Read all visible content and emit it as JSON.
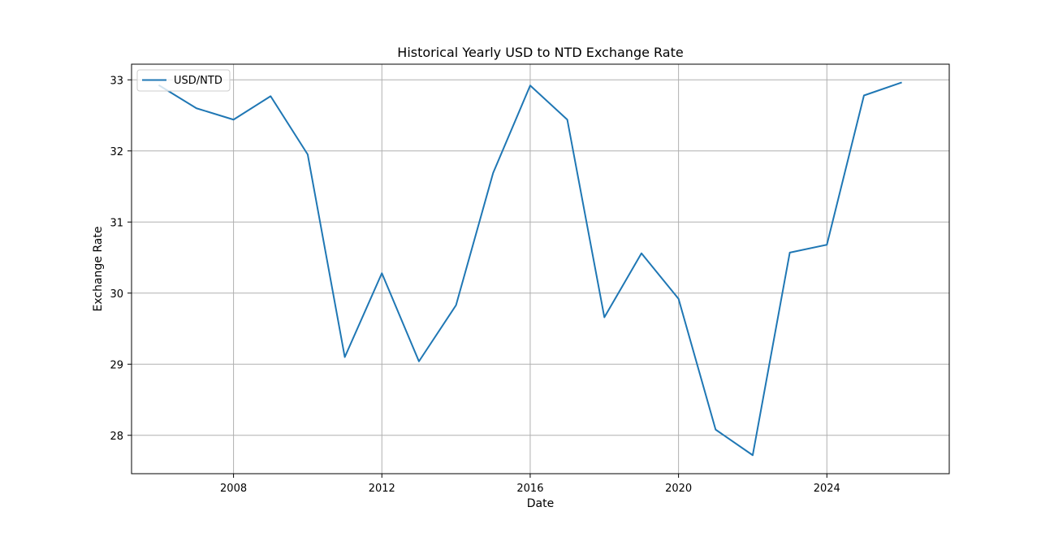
{
  "chart_data": {
    "type": "line",
    "title": "Historical Yearly USD to NTD Exchange Rate",
    "xlabel": "Date",
    "ylabel": "Exchange Rate",
    "xlim": [
      2005.25,
      2027.3
    ],
    "ylim": [
      27.46,
      33.22
    ],
    "x_ticks": [
      2008,
      2012,
      2016,
      2020,
      2024
    ],
    "x_tick_labels": [
      "2008",
      "2012",
      "2016",
      "2020",
      "2024"
    ],
    "y_ticks": [
      28,
      29,
      30,
      31,
      32,
      33
    ],
    "y_tick_labels": [
      "28",
      "29",
      "30",
      "31",
      "32",
      "33"
    ],
    "grid": true,
    "legend": {
      "location": "top-left"
    },
    "series": [
      {
        "name": "USD/NTD",
        "color": "#1f77b4",
        "x": [
          2006,
          2007,
          2008,
          2009,
          2010,
          2011,
          2012,
          2013,
          2014,
          2015,
          2016,
          2017,
          2018,
          2019,
          2020,
          2021,
          2022,
          2023,
          2024,
          2025,
          2026
        ],
        "values": [
          32.92,
          32.6,
          32.44,
          32.77,
          31.95,
          29.1,
          30.28,
          29.04,
          29.83,
          31.69,
          32.92,
          32.44,
          29.66,
          30.56,
          29.92,
          28.08,
          27.72,
          30.57,
          30.68,
          32.78,
          32.96
        ]
      }
    ]
  }
}
